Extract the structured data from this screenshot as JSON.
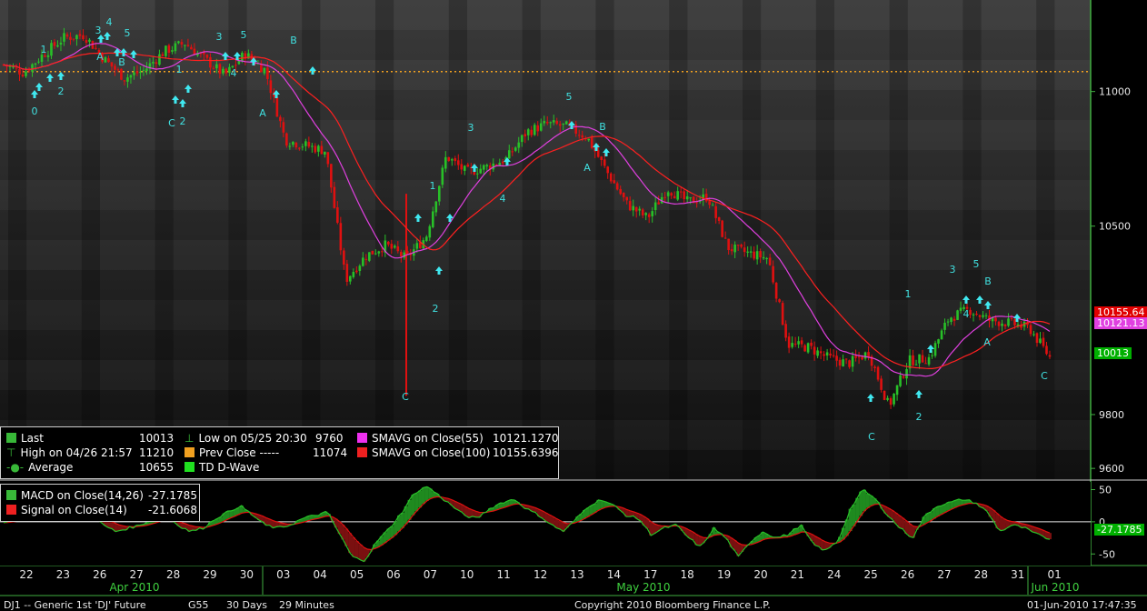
{
  "chart_data": [
    {
      "type": "candlestick",
      "instrument": "DJ1 -- Generic 1st 'DJ' Future",
      "ylim": [
        9560,
        11340
      ],
      "yticks": [
        9600,
        9800,
        10500,
        11000
      ],
      "prev_close_line": 11074,
      "x_day_labels": [
        "22",
        "23",
        "26",
        "27",
        "28",
        "29",
        "30",
        "03",
        "04",
        "05",
        "06",
        "07",
        "10",
        "11",
        "12",
        "13",
        "14",
        "17",
        "18",
        "19",
        "20",
        "21",
        "24",
        "25",
        "26",
        "27",
        "28",
        "31",
        "01"
      ],
      "month_labels": [
        "Apr 2010",
        "May 2010",
        "Jun 2010"
      ],
      "price_path_approx": [
        11100,
        11070,
        11140,
        11200,
        11210,
        11120,
        11050,
        11080,
        11150,
        11180,
        11120,
        11060,
        11140,
        11080,
        10820,
        10800,
        10780,
        10300,
        10390,
        10430,
        10380,
        10460,
        10760,
        10700,
        10720,
        10750,
        10850,
        10880,
        10870,
        10830,
        10700,
        10580,
        10530,
        10640,
        10590,
        10610,
        10420,
        10400,
        10380,
        10060,
        10050,
        10010,
        9990,
        10030,
        9830,
        10000,
        10010,
        10160,
        10190,
        10150,
        10140,
        10120,
        10013
      ],
      "overlays": [
        {
          "name": "SMAVG on Close(55)",
          "color": "#e040e0",
          "last": 10121.13
        },
        {
          "name": "SMAVG on Close(100)",
          "color": "#ff2020",
          "last": 10155.64
        }
      ],
      "wave_labels": [
        "0",
        "1",
        "2",
        "3",
        "4",
        "5",
        "A",
        "B",
        "C",
        "1",
        "2",
        "3",
        "4",
        "5",
        "A",
        "B",
        "C",
        "1",
        "2",
        "3",
        "4",
        "5",
        "A",
        "B",
        "C",
        "1",
        "2",
        "3",
        "4",
        "5",
        "A",
        "B",
        "C"
      ],
      "right_tags": [
        {
          "text": "10155.64",
          "color": "#e00000"
        },
        {
          "text": "10121.13",
          "color": "#e040e0"
        },
        {
          "text": "10013",
          "color": "#00b000"
        }
      ],
      "legend": {
        "rows": [
          {
            "label": "Last",
            "value": "10013",
            "color": "#38b838"
          },
          {
            "label": "High on 04/26 21:57",
            "value": "11210",
            "color": "#38b838"
          },
          {
            "label": "Average",
            "value": "10655",
            "color": "#38b838"
          },
          {
            "label": "Low on 05/25 20:30",
            "value": "9760",
            "color": "#38b838"
          },
          {
            "label": "Prev Close -----",
            "value": "11074",
            "color": "#f0a020"
          },
          {
            "label": "TD D-Wave",
            "value": "",
            "color": "#20e020"
          },
          {
            "label": "SMAVG on Close(55)",
            "value": "10121.1270",
            "color": "#ee30ee"
          },
          {
            "label": "SMAVG on Close(100)",
            "value": "10155.6396",
            "color": "#ee2020"
          }
        ]
      }
    },
    {
      "type": "line",
      "name": "MACD",
      "ylim": [
        -68,
        62
      ],
      "yticks": [
        50,
        0,
        -50
      ],
      "macd_path_approx": [
        0,
        5,
        10,
        8,
        12,
        15,
        18,
        10,
        -5,
        -15,
        -10,
        -5,
        5,
        10,
        -5,
        -15,
        -10,
        5,
        15,
        25,
        10,
        -5,
        -10,
        -5,
        5,
        10,
        15,
        -20,
        -55,
        -60,
        -30,
        -10,
        15,
        45,
        55,
        40,
        25,
        10,
        5,
        20,
        30,
        35,
        20,
        10,
        -5,
        -15,
        5,
        25,
        35,
        25,
        10,
        5,
        -20,
        -10,
        -5,
        -25,
        -40,
        -10,
        -25,
        -55,
        -30,
        -15,
        -25,
        -20,
        -5,
        -35,
        -45,
        -30,
        20,
        50,
        35,
        10,
        -10,
        -25,
        10,
        25,
        30,
        35,
        30,
        15,
        -15,
        -5,
        -10,
        -20,
        -27
      ],
      "legend": {
        "rows": [
          {
            "label": "MACD on Close(14,26)",
            "value": "-27.1785",
            "color": "#38b838"
          },
          {
            "label": "Signal on Close(14)",
            "value": "-21.6068",
            "color": "#ee2020"
          }
        ]
      },
      "right_tag": {
        "text": "-27.1785",
        "color": "#00b000"
      }
    }
  ],
  "footer": {
    "left": "DJ1 -- Generic 1st 'DJ' Future",
    "interval": "G55",
    "range": "30 Days",
    "bar": "29 Minutes",
    "copyright": "Copyright 2010 Bloomberg Finance L.P.",
    "timestamp": "01-Jun-2010 17:47:35"
  }
}
